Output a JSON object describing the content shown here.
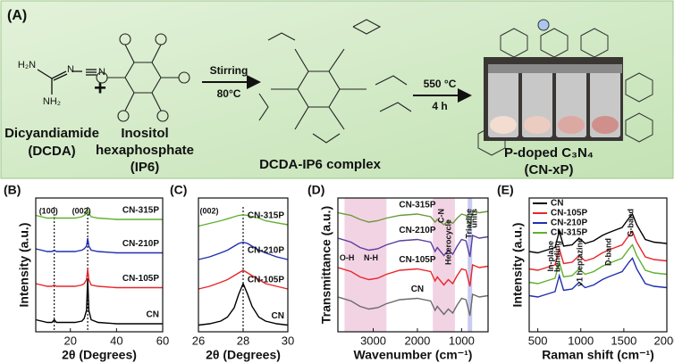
{
  "scheme": {
    "label": "(A)",
    "dcda_atoms": [
      "H₂N",
      "NH₂",
      "N",
      "N"
    ],
    "plus": "+",
    "reactant1": "Dicyandiamide",
    "reactant1_abbr": "(DCDA)",
    "reactant2": "Inositol",
    "reactant2b": "hexaphosphate",
    "reactant2_abbr": "(IP6)",
    "step1": "Stirring",
    "step1_temp": "80°C",
    "complex": "DCDA-IP6 complex",
    "step2": "550 °C",
    "step2_time": "4 h",
    "product": "P-doped C₃N₄",
    "product_abbr": "(CN-xP)"
  },
  "chart_data": [
    {
      "type": "line",
      "label": "(B)",
      "xlabel": "2θ (Degrees)",
      "ylabel": "Intensity (a.u.)",
      "xlim": [
        5,
        60
      ],
      "xticks": [
        20,
        40,
        60
      ],
      "ylim": [
        0,
        10
      ],
      "reference_lines": [
        13,
        27.5
      ],
      "annotations": [
        "(100)",
        "(002)"
      ],
      "x": [
        5,
        10,
        12,
        13,
        14,
        18,
        22,
        25,
        26,
        27,
        27.5,
        28,
        29,
        32,
        40,
        50,
        60
      ],
      "series": [
        {
          "name": "CN",
          "color": "#000000",
          "values": [
            0.9,
            0.7,
            0.7,
            0.9,
            0.7,
            0.7,
            0.7,
            0.8,
            1.0,
            1.6,
            4.0,
            1.6,
            0.9,
            0.7,
            0.6,
            0.6,
            0.6
          ]
        },
        {
          "name": "CN-105P",
          "color": "#e8262b",
          "values": [
            3.6,
            3.4,
            3.4,
            3.5,
            3.4,
            3.4,
            3.4,
            3.5,
            3.6,
            3.9,
            4.7,
            3.9,
            3.5,
            3.4,
            3.3,
            3.3,
            3.3
          ]
        },
        {
          "name": "CN-210P",
          "color": "#1f2fb0",
          "values": [
            6.2,
            6.0,
            6.0,
            6.1,
            6.0,
            6.0,
            6.0,
            6.1,
            6.2,
            6.4,
            7.0,
            6.4,
            6.1,
            6.0,
            5.9,
            5.9,
            5.9
          ]
        },
        {
          "name": "CN-315P",
          "color": "#5fb030",
          "values": [
            8.7,
            8.5,
            8.5,
            8.55,
            8.5,
            8.5,
            8.5,
            8.6,
            8.7,
            8.85,
            9.1,
            8.85,
            8.6,
            8.5,
            8.4,
            8.4,
            8.4
          ]
        }
      ]
    },
    {
      "type": "line",
      "label": "(C)",
      "xlabel": "2θ (Degrees)",
      "xlim": [
        26,
        30
      ],
      "xticks": [
        26,
        28,
        30
      ],
      "ylim": [
        0,
        10
      ],
      "reference_lines": [
        28
      ],
      "annotations": [
        "(002)"
      ],
      "x": [
        26,
        26.5,
        27,
        27.3,
        27.6,
        27.8,
        28,
        28.2,
        28.4,
        28.7,
        29,
        29.5,
        30
      ],
      "series": [
        {
          "name": "CN",
          "color": "#000000",
          "values": [
            0.5,
            0.6,
            0.8,
            1.1,
            1.8,
            2.8,
            3.6,
            2.8,
            1.9,
            1.1,
            0.8,
            0.6,
            0.5
          ]
        },
        {
          "name": "CN-105P",
          "color": "#e8262b",
          "values": [
            3.2,
            3.4,
            3.7,
            3.9,
            4.2,
            4.4,
            4.6,
            4.4,
            4.2,
            3.9,
            3.6,
            3.4,
            3.2
          ]
        },
        {
          "name": "CN-210P",
          "color": "#1f2fb0",
          "values": [
            5.4,
            5.6,
            5.9,
            6.1,
            6.4,
            6.6,
            6.7,
            6.6,
            6.4,
            6.1,
            5.9,
            5.6,
            5.4
          ]
        },
        {
          "name": "CN-315P",
          "color": "#5fb030",
          "values": [
            7.9,
            8.1,
            8.3,
            8.45,
            8.6,
            8.7,
            8.75,
            8.7,
            8.6,
            8.5,
            8.3,
            8.15,
            8.0
          ]
        }
      ]
    },
    {
      "type": "line",
      "label": "(D)",
      "xlabel": "Wavenumber (cm⁻¹)",
      "ylabel": "Transmittance (a.u.)",
      "xlim": [
        3800,
        400
      ],
      "xticks": [
        3000,
        2000,
        1000
      ],
      "ylim": [
        0,
        10
      ],
      "bands": [
        {
          "from": 3650,
          "to": 2700,
          "color": "#f2d3e4"
        },
        {
          "from": 1650,
          "to": 1150,
          "color": "#f2d3e4"
        },
        {
          "from": 860,
          "to": 760,
          "color": "#c9cbf0"
        }
      ],
      "annotations": [
        "O-H",
        "N-H",
        "C-N",
        "Heterocycle",
        "Triazine",
        "units"
      ],
      "x": [
        3800,
        3500,
        3300,
        3100,
        2900,
        2700,
        2400,
        2000,
        1700,
        1600,
        1550,
        1400,
        1300,
        1200,
        1100,
        1000,
        900,
        810,
        750,
        600,
        400
      ],
      "series": [
        {
          "name": "CN",
          "color": "#6b6b6b",
          "values": [
            2.6,
            2.3,
            1.9,
            1.7,
            1.8,
            2.1,
            2.4,
            2.5,
            2.3,
            1.6,
            1.9,
            1.3,
            1.7,
            1.4,
            2.0,
            2.5,
            2.4,
            1.2,
            2.8,
            2.6,
            2.7
          ]
        },
        {
          "name": "CN-105P",
          "color": "#e8262b",
          "values": [
            4.8,
            4.5,
            4.1,
            3.9,
            4.0,
            4.3,
            4.6,
            4.7,
            4.5,
            3.8,
            4.1,
            3.5,
            3.9,
            3.6,
            4.2,
            4.7,
            4.6,
            3.4,
            5.0,
            4.8,
            4.9
          ]
        },
        {
          "name": "CN-210P",
          "color": "#5a3fa0",
          "values": [
            7.0,
            6.7,
            6.3,
            6.1,
            6.2,
            6.5,
            6.8,
            6.9,
            6.7,
            6.0,
            6.3,
            5.7,
            6.1,
            5.8,
            6.4,
            6.9,
            6.8,
            5.6,
            7.2,
            7.0,
            7.1
          ]
        },
        {
          "name": "CN-315P",
          "color": "#6a9a3a",
          "values": [
            8.9,
            8.7,
            8.4,
            8.2,
            8.3,
            8.5,
            8.7,
            8.8,
            8.6,
            8.2,
            8.4,
            8.0,
            8.3,
            8.1,
            8.5,
            8.8,
            8.7,
            7.9,
            9.0,
            8.9,
            9.0
          ]
        }
      ]
    },
    {
      "type": "line",
      "label": "(E)",
      "xlabel": "Raman shift (cm⁻¹)",
      "ylabel": "Intensity (a.u.)",
      "xlim": [
        400,
        2000
      ],
      "xticks": [
        500,
        1000,
        1500,
        2000
      ],
      "ylim": [
        0,
        10
      ],
      "legend": "upper left",
      "annotations": [
        "In-plane",
        "bending",
        "ν1 heptazine",
        "D-band",
        "G-band"
      ],
      "x": [
        400,
        500,
        600,
        700,
        750,
        800,
        900,
        980,
        1050,
        1150,
        1250,
        1320,
        1400,
        1480,
        1560,
        1600,
        1650,
        1750,
        1850,
        2000
      ],
      "series": [
        {
          "name": "CN",
          "color": "#000000",
          "values": [
            6.0,
            5.9,
            6.1,
            6.3,
            7.5,
            6.4,
            6.5,
            7.0,
            6.6,
            6.8,
            7.2,
            7.4,
            7.6,
            7.8,
            8.5,
            8.8,
            8.0,
            6.9,
            6.7,
            6.6
          ]
        },
        {
          "name": "CN-105P",
          "color": "#e8262b",
          "values": [
            4.7,
            4.6,
            4.8,
            5.0,
            6.2,
            5.1,
            5.2,
            5.7,
            5.3,
            5.5,
            5.9,
            6.1,
            6.3,
            6.5,
            7.2,
            7.5,
            6.7,
            5.6,
            5.4,
            5.3
          ]
        },
        {
          "name": "CN-210P",
          "color": "#1f2fb0",
          "values": [
            2.7,
            2.6,
            2.8,
            3.0,
            4.2,
            3.1,
            3.2,
            3.7,
            3.3,
            3.5,
            3.9,
            4.1,
            4.3,
            4.5,
            5.2,
            5.5,
            4.7,
            3.6,
            3.4,
            3.3
          ]
        },
        {
          "name": "CN-315P",
          "color": "#5fb030",
          "values": [
            3.7,
            3.6,
            3.8,
            4.0,
            5.2,
            4.1,
            4.2,
            4.7,
            4.3,
            4.5,
            4.9,
            5.1,
            5.3,
            5.5,
            6.2,
            6.5,
            5.7,
            4.6,
            4.4,
            4.3
          ]
        }
      ]
    }
  ]
}
